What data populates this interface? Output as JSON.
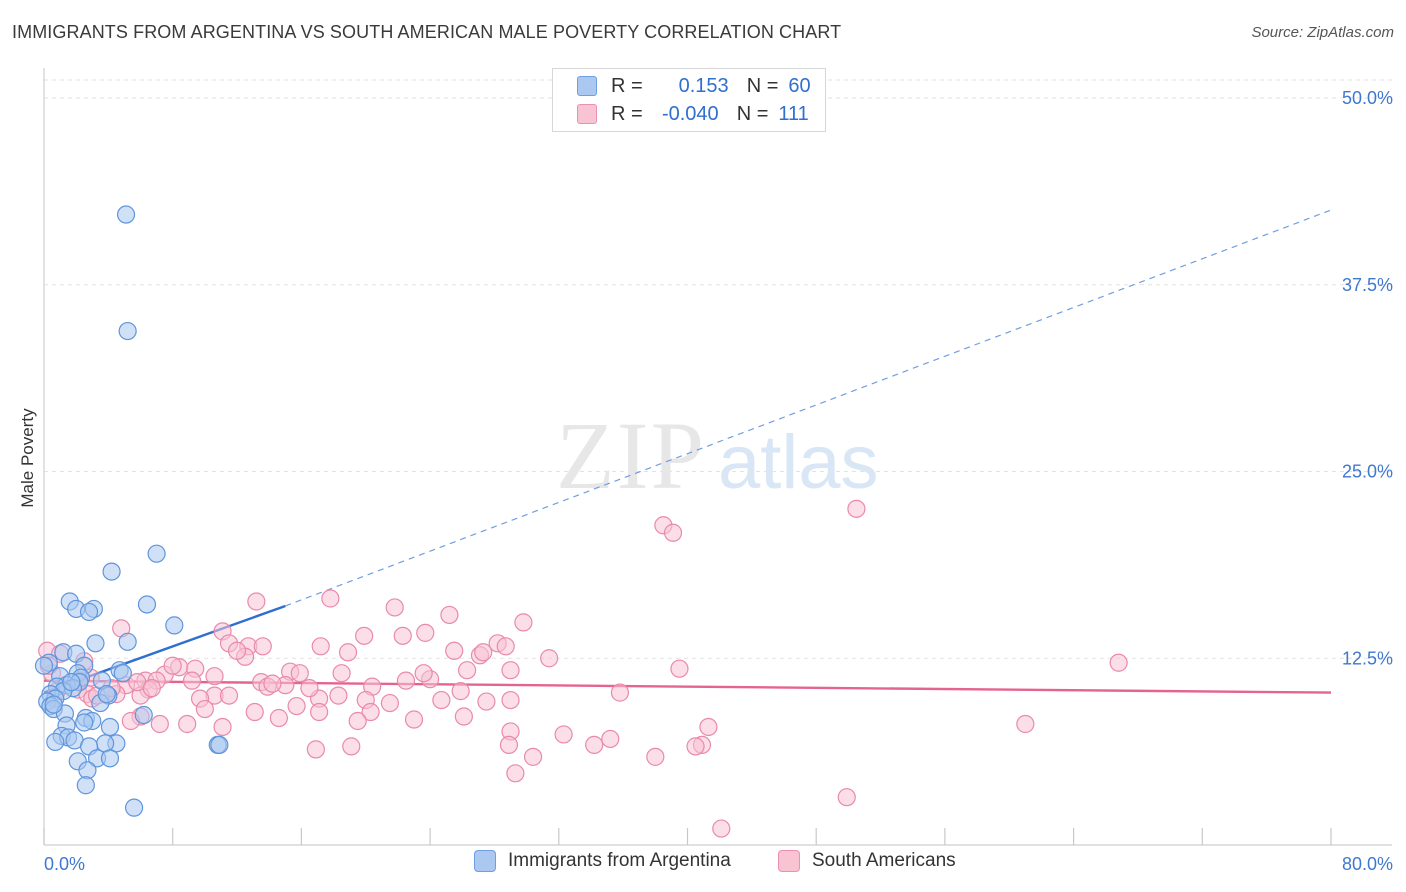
{
  "header": {
    "title": "IMMIGRANTS FROM ARGENTINA VS SOUTH AMERICAN MALE POVERTY CORRELATION CHART",
    "source": "Source: ZipAtlas.com"
  },
  "watermark": {
    "zip": "ZIP",
    "atlas": "atlas"
  },
  "legend": {
    "rows": [
      {
        "r_label": "R =",
        "r_value": "0.153",
        "n_label": "N =",
        "n_value": "60",
        "color": "#aac8f0",
        "stroke": "#6f9fe0"
      },
      {
        "r_label": "R =",
        "r_value": "-0.040",
        "n_label": "N =",
        "n_value": "111",
        "color": "#f8c3d3",
        "stroke": "#ec8fb0"
      }
    ]
  },
  "colors": {
    "blue_fill": "#aac8f0",
    "blue_stroke": "#5f95dc",
    "blue_line": "#2f6fd0",
    "pink_fill": "#f8c3d3",
    "pink_stroke": "#e98aab",
    "pink_line": "#e5648f",
    "grid": "#e2e2e2",
    "axis_tick_text": "#3f78cf"
  },
  "chart_data": {
    "type": "scatter",
    "ylabel": "Male Poverty",
    "xlim": [
      0,
      80
    ],
    "ylim": [
      0,
      50
    ],
    "x_ticks": [
      0,
      8,
      16,
      24,
      32,
      40,
      48,
      56,
      64,
      72,
      80
    ],
    "x_tick_labels": [
      {
        "value": 0,
        "label": "0.0%"
      },
      {
        "value": 80,
        "label": "80.0%"
      }
    ],
    "y_gridlines": [
      12.5,
      25.0,
      37.5,
      50.0
    ],
    "y_tick_labels": [
      "12.5%",
      "25.0%",
      "37.5%",
      "50.0%"
    ],
    "grid": true,
    "legend_position": "top-center",
    "series": [
      {
        "name": "Immigrants from Argentina",
        "trend": {
          "x0": 0,
          "y0": 10.2,
          "x1": 15,
          "y1": 16.0,
          "extend_to_x": 80,
          "extend_to_y": 42.5
        },
        "points": [
          [
            5.1,
            42.2
          ],
          [
            5.2,
            34.4
          ],
          [
            7.0,
            19.5
          ],
          [
            4.2,
            18.3
          ],
          [
            1.6,
            16.3
          ],
          [
            6.4,
            16.1
          ],
          [
            2.0,
            15.8
          ],
          [
            3.1,
            15.8
          ],
          [
            2.8,
            15.6
          ],
          [
            8.1,
            14.7
          ],
          [
            5.2,
            13.6
          ],
          [
            3.2,
            13.5
          ],
          [
            1.2,
            12.9
          ],
          [
            2.0,
            12.8
          ],
          [
            0.3,
            12.2
          ],
          [
            2.5,
            12.0
          ],
          [
            4.7,
            11.7
          ],
          [
            4.9,
            11.5
          ],
          [
            2.1,
            11.5
          ],
          [
            1.0,
            11.3
          ],
          [
            2.3,
            11.2
          ],
          [
            3.6,
            11.0
          ],
          [
            2.2,
            10.9
          ],
          [
            1.4,
            10.7
          ],
          [
            0.8,
            10.6
          ],
          [
            1.8,
            10.5
          ],
          [
            1.2,
            10.3
          ],
          [
            0.4,
            10.1
          ],
          [
            4.0,
            10.0
          ],
          [
            0.7,
            9.8
          ],
          [
            0.2,
            9.6
          ],
          [
            3.5,
            9.5
          ],
          [
            0.4,
            9.3
          ],
          [
            0.6,
            9.1
          ],
          [
            1.3,
            8.8
          ],
          [
            6.2,
            8.7
          ],
          [
            2.6,
            8.5
          ],
          [
            3.0,
            8.3
          ],
          [
            2.5,
            8.2
          ],
          [
            1.4,
            8.0
          ],
          [
            4.1,
            7.9
          ],
          [
            1.1,
            7.3
          ],
          [
            1.5,
            7.2
          ],
          [
            1.9,
            7.0
          ],
          [
            0.7,
            6.9
          ],
          [
            4.5,
            6.8
          ],
          [
            3.8,
            6.8
          ],
          [
            10.8,
            6.7
          ],
          [
            2.8,
            6.6
          ],
          [
            3.3,
            5.8
          ],
          [
            4.1,
            5.8
          ],
          [
            2.1,
            5.6
          ],
          [
            2.7,
            5.0
          ],
          [
            2.6,
            4.0
          ],
          [
            5.6,
            2.5
          ],
          [
            0.0,
            12.0
          ],
          [
            0.6,
            9.4
          ],
          [
            1.7,
            10.9
          ],
          [
            3.9,
            10.1
          ],
          [
            10.9,
            6.7
          ]
        ]
      },
      {
        "name": "South Americans",
        "trend": {
          "x0": 0,
          "y0": 11.0,
          "x1": 80,
          "y1": 10.2
        },
        "points": [
          [
            50.5,
            22.5
          ],
          [
            38.5,
            21.4
          ],
          [
            39.1,
            20.9
          ],
          [
            13.2,
            16.3
          ],
          [
            17.8,
            16.5
          ],
          [
            21.8,
            15.9
          ],
          [
            25.2,
            15.4
          ],
          [
            29.8,
            14.9
          ],
          [
            4.8,
            14.5
          ],
          [
            11.1,
            14.3
          ],
          [
            23.7,
            14.2
          ],
          [
            19.9,
            14.0
          ],
          [
            22.3,
            14.0
          ],
          [
            11.5,
            13.5
          ],
          [
            12.7,
            13.3
          ],
          [
            17.2,
            13.3
          ],
          [
            28.2,
            13.5
          ],
          [
            28.7,
            13.3
          ],
          [
            18.9,
            12.9
          ],
          [
            27.1,
            12.7
          ],
          [
            12.5,
            12.6
          ],
          [
            31.4,
            12.5
          ],
          [
            2.5,
            12.3
          ],
          [
            66.8,
            12.2
          ],
          [
            8.4,
            11.9
          ],
          [
            39.5,
            11.8
          ],
          [
            9.4,
            11.8
          ],
          [
            26.3,
            11.7
          ],
          [
            29.0,
            11.7
          ],
          [
            15.3,
            11.6
          ],
          [
            15.9,
            11.5
          ],
          [
            7.5,
            11.4
          ],
          [
            10.6,
            11.3
          ],
          [
            2.9,
            11.2
          ],
          [
            6.3,
            11.0
          ],
          [
            7.0,
            11.0
          ],
          [
            13.5,
            10.9
          ],
          [
            15.0,
            10.7
          ],
          [
            5.1,
            10.7
          ],
          [
            13.9,
            10.6
          ],
          [
            22.5,
            11.0
          ],
          [
            24.0,
            11.1
          ],
          [
            20.4,
            10.6
          ],
          [
            6.5,
            10.4
          ],
          [
            2.1,
            10.4
          ],
          [
            0.8,
            10.3
          ],
          [
            25.9,
            10.3
          ],
          [
            2.7,
            10.1
          ],
          [
            6.0,
            10.0
          ],
          [
            4.5,
            10.1
          ],
          [
            10.6,
            10.0
          ],
          [
            17.1,
            9.8
          ],
          [
            18.3,
            10.0
          ],
          [
            20.0,
            9.7
          ],
          [
            9.7,
            9.8
          ],
          [
            3.0,
            9.8
          ],
          [
            24.7,
            9.7
          ],
          [
            27.5,
            9.6
          ],
          [
            29.0,
            9.7
          ],
          [
            15.7,
            9.3
          ],
          [
            10.0,
            9.1
          ],
          [
            13.1,
            8.9
          ],
          [
            17.1,
            8.9
          ],
          [
            20.3,
            8.9
          ],
          [
            6.0,
            8.6
          ],
          [
            14.6,
            8.5
          ],
          [
            5.4,
            8.3
          ],
          [
            23.0,
            8.4
          ],
          [
            19.5,
            8.3
          ],
          [
            26.1,
            8.6
          ],
          [
            8.9,
            8.1
          ],
          [
            7.2,
            8.1
          ],
          [
            11.1,
            7.9
          ],
          [
            29.0,
            7.6
          ],
          [
            32.3,
            7.4
          ],
          [
            41.3,
            7.9
          ],
          [
            61.0,
            8.1
          ],
          [
            35.2,
            7.1
          ],
          [
            40.9,
            6.7
          ],
          [
            40.5,
            6.6
          ],
          [
            28.9,
            6.7
          ],
          [
            34.2,
            6.7
          ],
          [
            19.1,
            6.6
          ],
          [
            16.9,
            6.4
          ],
          [
            30.4,
            5.9
          ],
          [
            38.0,
            5.9
          ],
          [
            29.3,
            4.8
          ],
          [
            49.9,
            3.2
          ],
          [
            42.1,
            1.1
          ],
          [
            0.2,
            13.0
          ],
          [
            0.5,
            11.5
          ],
          [
            0.3,
            12.0
          ],
          [
            1.0,
            12.8
          ],
          [
            4.2,
            10.5
          ],
          [
            3.3,
            10.0
          ],
          [
            5.8,
            10.9
          ],
          [
            12.0,
            13.0
          ],
          [
            13.6,
            13.3
          ],
          [
            9.2,
            11.0
          ],
          [
            16.5,
            10.5
          ],
          [
            21.5,
            9.5
          ],
          [
            2.2,
            11.0
          ],
          [
            8.0,
            12.0
          ],
          [
            18.5,
            11.5
          ],
          [
            11.5,
            10.0
          ],
          [
            14.2,
            10.8
          ],
          [
            25.5,
            13.0
          ],
          [
            27.3,
            12.9
          ],
          [
            6.7,
            10.5
          ],
          [
            35.8,
            10.2
          ],
          [
            23.6,
            11.5
          ]
        ]
      }
    ]
  },
  "bottom_legend": {
    "items": [
      {
        "label": "Immigrants from Argentina"
      },
      {
        "label": "South Americans"
      }
    ]
  }
}
